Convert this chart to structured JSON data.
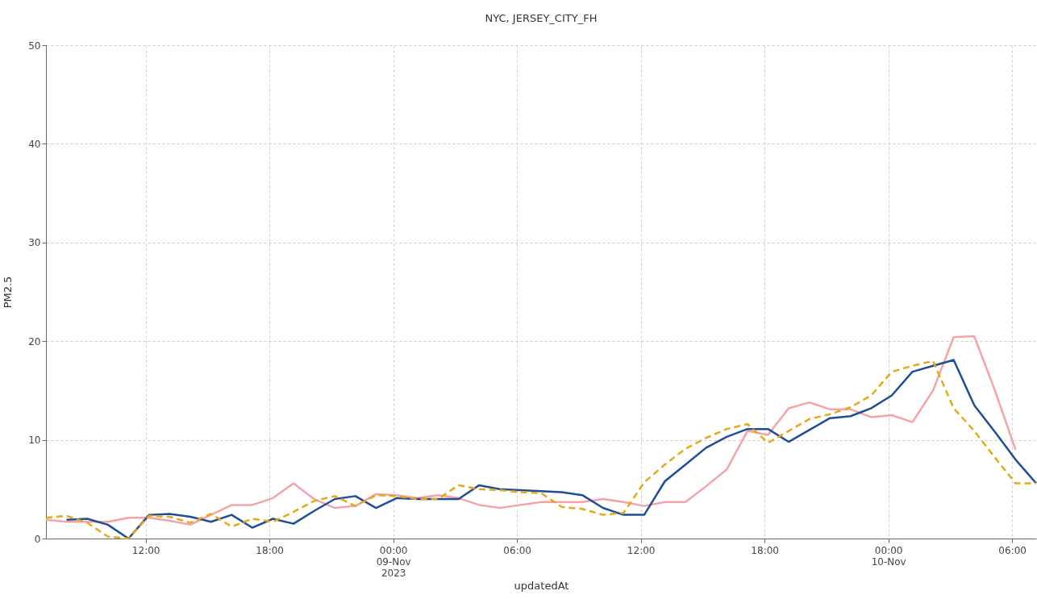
{
  "chart_data": {
    "type": "line",
    "title": "NYC, JERSEY_CITY_FH",
    "xlabel": "updatedAt",
    "ylabel": "PM2.5",
    "x": [
      "2023-11-08T07:10",
      "2023-11-08T08:10",
      "2023-11-08T09:10",
      "2023-11-08T10:10",
      "2023-11-08T11:10",
      "2023-11-08T12:10",
      "2023-11-08T13:10",
      "2023-11-08T14:10",
      "2023-11-08T15:10",
      "2023-11-08T16:10",
      "2023-11-08T17:10",
      "2023-11-08T18:10",
      "2023-11-08T19:10",
      "2023-11-08T20:10",
      "2023-11-08T21:10",
      "2023-11-08T22:10",
      "2023-11-08T23:10",
      "2023-11-09T00:10",
      "2023-11-09T01:10",
      "2023-11-09T02:10",
      "2023-11-09T03:10",
      "2023-11-09T04:10",
      "2023-11-09T05:10",
      "2023-11-09T06:10",
      "2023-11-09T07:10",
      "2023-11-09T08:10",
      "2023-11-09T09:10",
      "2023-11-09T10:10",
      "2023-11-09T11:10",
      "2023-11-09T12:10",
      "2023-11-09T13:10",
      "2023-11-09T14:10",
      "2023-11-09T15:10",
      "2023-11-09T16:10",
      "2023-11-09T17:10",
      "2023-11-09T18:10",
      "2023-11-09T19:10",
      "2023-11-09T20:10",
      "2023-11-09T21:10",
      "2023-11-09T22:10",
      "2023-11-09T23:10",
      "2023-11-10T00:10",
      "2023-11-10T01:10",
      "2023-11-10T02:10",
      "2023-11-10T03:10",
      "2023-11-10T04:10",
      "2023-11-10T05:10",
      "2023-11-10T06:10",
      "2023-11-10T07:10"
    ],
    "series": [
      {
        "color": "#f4a3a8",
        "values": [
          1.9,
          1.7,
          1.7,
          1.7,
          2.1,
          2.1,
          1.8,
          1.4,
          2.4,
          3.4,
          3.4,
          4.1,
          5.6,
          4.0,
          3.1,
          3.3,
          4.5,
          4.4,
          4.1,
          4.4,
          4.1,
          3.4,
          3.1,
          3.4,
          3.7,
          3.7,
          3.7,
          4.0,
          3.7,
          3.3,
          3.7,
          3.7,
          5.3,
          7.0,
          10.9,
          10.5,
          13.2,
          13.8,
          13.1,
          13.1,
          12.3,
          12.5,
          11.8,
          15.0,
          20.4,
          20.5,
          15.0,
          9.0,
          null
        ]
      },
      {
        "color": "#1f4e99",
        "values": [
          null,
          1.9,
          2.0,
          1.4,
          0.0,
          2.4,
          2.5,
          2.2,
          1.7,
          2.4,
          1.1,
          2.0,
          1.5,
          2.8,
          4.0,
          4.3,
          3.1,
          4.1,
          4.0,
          4.0,
          4.0,
          5.4,
          5.0,
          4.9,
          4.8,
          4.7,
          4.4,
          3.1,
          2.4,
          2.4,
          5.8,
          7.5,
          9.2,
          10.3,
          11.1,
          11.1,
          9.8,
          11.0,
          12.2,
          12.4,
          13.2,
          14.5,
          16.9,
          17.5,
          18.1,
          13.5,
          10.8,
          8.0,
          5.6
        ]
      },
      {
        "color": "#e6a817",
        "line_style": "dashed",
        "values": [
          2.1,
          2.3,
          1.6,
          0.2,
          0.0,
          2.3,
          2.2,
          1.6,
          2.5,
          1.2,
          2.0,
          1.7,
          2.7,
          3.8,
          4.3,
          3.3,
          4.4,
          4.3,
          4.0,
          4.0,
          5.4,
          5.0,
          4.9,
          4.7,
          4.6,
          3.2,
          3.0,
          2.4,
          2.6,
          5.7,
          7.5,
          9.1,
          10.2,
          11.1,
          11.6,
          9.7,
          10.9,
          12.1,
          12.6,
          13.3,
          14.5,
          16.9,
          17.5,
          18.0,
          13.2,
          10.9,
          8.2,
          5.6,
          5.6
        ]
      }
    ],
    "xlim": [
      "2023-11-08T07:10",
      "2023-11-10T07:10"
    ],
    "xticks": [
      {
        "value": "2023-11-08T12:00",
        "label": "12:00"
      },
      {
        "value": "2023-11-08T18:00",
        "label": "18:00"
      },
      {
        "value": "2023-11-09T00:00",
        "label": "00:00\n09-Nov\n2023"
      },
      {
        "value": "2023-11-09T06:00",
        "label": "06:00"
      },
      {
        "value": "2023-11-09T12:00",
        "label": "12:00"
      },
      {
        "value": "2023-11-09T18:00",
        "label": "18:00"
      },
      {
        "value": "2023-11-10T00:00",
        "label": "00:00\n10-Nov"
      },
      {
        "value": "2023-11-10T06:00",
        "label": "06:00"
      }
    ],
    "ylim": [
      0,
      50
    ],
    "yticks": [
      0,
      10,
      20,
      30,
      40,
      50
    ],
    "grid": true
  }
}
